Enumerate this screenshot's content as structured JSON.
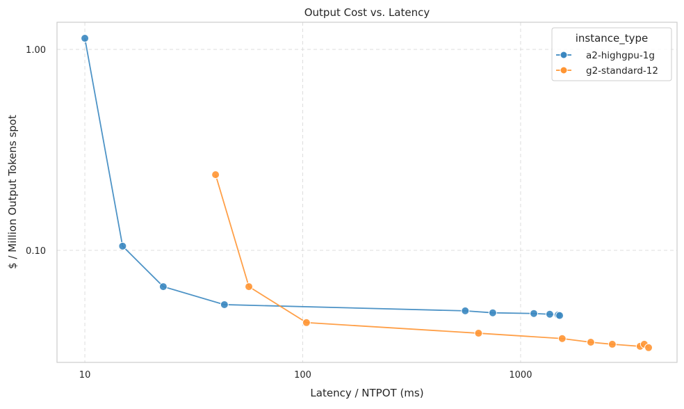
{
  "chart_data": {
    "type": "line",
    "title": "Output Cost vs. Latency",
    "xlabel": "Latency / NTPOT (ms)",
    "ylabel": "$ / Million Output Tokens spot",
    "xscale": "log",
    "yscale": "log",
    "xlim": [
      7.45,
      5224
    ],
    "ylim": [
      0.0277,
      1.365
    ],
    "xticks": [
      {
        "value": 10,
        "label": "10"
      },
      {
        "value": 100,
        "label": "100"
      },
      {
        "value": 1000,
        "label": "1000"
      }
    ],
    "yticks": [
      {
        "value": 0.1,
        "label": "0.10"
      },
      {
        "value": 1.0,
        "label": "1.00"
      }
    ],
    "grid": true,
    "legend": {
      "title": "instance_type",
      "position": "top-right"
    },
    "series": [
      {
        "name": "a2-highgpu-1g",
        "color": "#1f77b4",
        "x": [
          10,
          14.9,
          22.9,
          43.7,
          557,
          745,
          1150,
          1361,
          1486,
          1510
        ],
        "y": [
          1.136,
          0.105,
          0.066,
          0.0537,
          0.05,
          0.0489,
          0.0485,
          0.0481,
          0.0477,
          0.0474
        ]
      },
      {
        "name": "g2-standard-12",
        "color": "#ff7f0e",
        "x": [
          39.8,
          56.6,
          104,
          641,
          1552,
          2099,
          2635,
          3535,
          3695,
          3866
        ],
        "y": [
          0.238,
          0.066,
          0.0437,
          0.0387,
          0.0364,
          0.0349,
          0.0341,
          0.0333,
          0.0341,
          0.0328
        ]
      }
    ]
  }
}
